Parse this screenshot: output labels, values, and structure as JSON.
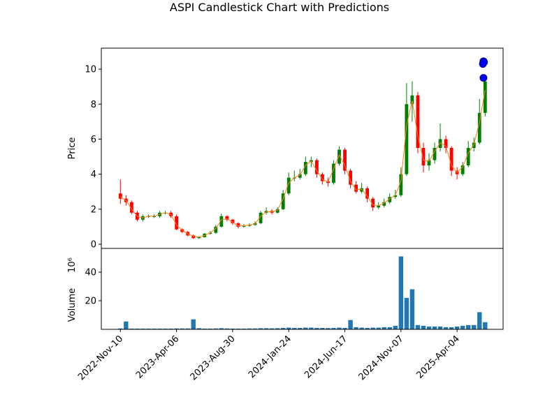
{
  "chart_data": [
    {
      "type": "candlestick",
      "title": "ASPI Candlestick Chart with Predictions",
      "y_label": "Price",
      "x": [
        0,
        10,
        20,
        30,
        40,
        50,
        60,
        70,
        80,
        90,
        100,
        110,
        120,
        130,
        140,
        150,
        160,
        170,
        180,
        190,
        200,
        210,
        220,
        230,
        240,
        250,
        260,
        270,
        280,
        290,
        300,
        310,
        320,
        330,
        340,
        350,
        360,
        370,
        380,
        390,
        400,
        410,
        420,
        430,
        440,
        450,
        460,
        470,
        480,
        490,
        500,
        510,
        520,
        530,
        540,
        550,
        560,
        570,
        580,
        590,
        600,
        610,
        620,
        630,
        640,
        650
      ],
      "open": [
        2.9,
        2.6,
        2.4,
        1.8,
        1.4,
        1.6,
        1.6,
        1.6,
        1.8,
        1.8,
        1.6,
        0.85,
        0.7,
        0.5,
        0.35,
        0.4,
        0.6,
        0.65,
        1.0,
        1.6,
        1.4,
        1.2,
        1.0,
        1.05,
        1.1,
        1.2,
        1.8,
        1.9,
        1.8,
        2.0,
        2.9,
        3.8,
        3.8,
        4.0,
        4.7,
        4.8,
        4.0,
        3.6,
        3.5,
        4.6,
        5.4,
        4.2,
        3.4,
        3.0,
        3.2,
        2.6,
        2.1,
        2.2,
        2.4,
        2.7,
        2.8,
        4.0,
        8.0,
        8.5,
        5.5,
        4.5,
        4.8,
        5.5,
        6.0,
        5.5,
        4.2,
        4.0,
        4.5,
        5.5,
        5.8,
        7.5
      ],
      "high": [
        3.7,
        2.8,
        2.5,
        1.9,
        1.7,
        1.7,
        1.7,
        1.9,
        1.9,
        1.9,
        1.7,
        0.9,
        0.75,
        0.55,
        0.45,
        0.65,
        0.75,
        1.1,
        1.75,
        1.65,
        1.45,
        1.25,
        1.15,
        1.2,
        1.3,
        1.9,
        2.1,
        2.0,
        2.1,
        3.1,
        4.1,
        4.2,
        4.3,
        5.0,
        5.0,
        4.9,
        4.1,
        3.8,
        4.8,
        5.6,
        5.5,
        4.3,
        3.6,
        3.5,
        3.3,
        2.7,
        2.4,
        2.6,
        2.9,
        3.1,
        4.4,
        9.2,
        9.3,
        8.7,
        5.8,
        5.2,
        5.8,
        6.9,
        6.2,
        5.6,
        4.4,
        4.7,
        5.9,
        6.1,
        8.3,
        9.5
      ],
      "low": [
        2.3,
        2.2,
        1.7,
        1.3,
        1.3,
        1.5,
        1.5,
        1.5,
        1.7,
        1.5,
        0.8,
        0.65,
        0.45,
        0.3,
        0.3,
        0.38,
        0.55,
        0.6,
        0.95,
        1.3,
        1.1,
        0.9,
        0.95,
        1.0,
        1.05,
        1.15,
        1.7,
        1.7,
        1.75,
        1.95,
        2.8,
        3.6,
        3.7,
        3.9,
        4.4,
        3.8,
        3.4,
        3.3,
        3.4,
        4.5,
        4.0,
        3.2,
        2.9,
        2.9,
        2.4,
        1.9,
        2.0,
        2.1,
        2.3,
        2.6,
        2.7,
        3.9,
        7.0,
        5.2,
        4.1,
        4.2,
        4.6,
        5.3,
        5.2,
        3.9,
        3.7,
        3.9,
        4.4,
        5.3,
        5.7,
        7.3
      ],
      "close": [
        2.6,
        2.4,
        1.8,
        1.4,
        1.6,
        1.6,
        1.6,
        1.8,
        1.8,
        1.6,
        0.85,
        0.7,
        0.5,
        0.35,
        0.4,
        0.6,
        0.65,
        1.0,
        1.6,
        1.4,
        1.2,
        1.0,
        1.05,
        1.1,
        1.2,
        1.8,
        1.9,
        1.8,
        2.0,
        2.9,
        3.8,
        3.8,
        4.0,
        4.7,
        4.8,
        4.0,
        3.6,
        3.5,
        4.6,
        5.4,
        4.2,
        3.4,
        3.0,
        3.2,
        2.6,
        2.1,
        2.2,
        2.4,
        2.7,
        2.8,
        4.0,
        8.0,
        8.5,
        5.5,
        4.5,
        4.8,
        5.5,
        6.0,
        5.5,
        4.2,
        4.0,
        4.5,
        5.5,
        5.8,
        7.5,
        9.3
      ],
      "up_color": "#008000",
      "down_color": "#ff0000",
      "ma": {
        "color": "#ff7f0e",
        "values": [
          2.7,
          2.5,
          2.0,
          1.6,
          1.5,
          1.6,
          1.6,
          1.7,
          1.8,
          1.7,
          1.1,
          0.8,
          0.6,
          0.45,
          0.4,
          0.5,
          0.65,
          0.9,
          1.4,
          1.45,
          1.25,
          1.05,
          1.05,
          1.1,
          1.15,
          1.6,
          1.85,
          1.85,
          1.95,
          2.6,
          3.5,
          3.8,
          3.95,
          4.5,
          4.75,
          4.2,
          3.7,
          3.55,
          4.3,
          5.1,
          4.5,
          3.6,
          3.1,
          3.15,
          2.75,
          2.25,
          2.2,
          2.35,
          2.6,
          2.8,
          3.6,
          6.8,
          8.2,
          6.2,
          4.8,
          4.75,
          5.3,
          5.8,
          5.6,
          4.5,
          4.1,
          4.4,
          5.2,
          5.7,
          7.0,
          8.8
        ]
      },
      "predictions": {
        "color": "#0000ff",
        "x": [
          646,
          647,
          647,
          648
        ],
        "values": [
          10.3,
          10.45,
          9.5,
          10.4
        ]
      },
      "xlim": [
        -34,
        682
      ],
      "ylim": [
        -0.24,
        11.2
      ],
      "yticks": [
        0,
        2,
        4,
        6,
        8,
        10
      ]
    },
    {
      "type": "bar",
      "y_label": "Volume",
      "scale_label": "10⁶",
      "color": "#1f77b4",
      "x": [
        0,
        10,
        20,
        30,
        40,
        50,
        60,
        70,
        80,
        90,
        100,
        110,
        120,
        130,
        140,
        150,
        160,
        170,
        180,
        190,
        200,
        210,
        220,
        230,
        240,
        250,
        260,
        270,
        280,
        290,
        300,
        310,
        320,
        330,
        340,
        350,
        360,
        370,
        380,
        390,
        400,
        410,
        420,
        430,
        440,
        450,
        460,
        470,
        480,
        490,
        500,
        510,
        520,
        530,
        540,
        550,
        560,
        570,
        580,
        590,
        600,
        610,
        620,
        630,
        640,
        650
      ],
      "values": [
        0.6,
        5.5,
        0.5,
        0.5,
        0.5,
        0.5,
        0.5,
        0.5,
        0.5,
        0.5,
        0.6,
        0.6,
        0.6,
        7,
        0.8,
        0.5,
        0.5,
        0.6,
        0.8,
        0.6,
        0.5,
        0.5,
        0.5,
        0.6,
        0.6,
        0.8,
        0.8,
        0.7,
        0.8,
        1.0,
        1.2,
        1.0,
        1.0,
        1.2,
        1.2,
        1.0,
        1.0,
        0.9,
        1.0,
        1.2,
        1.0,
        6.5,
        1.5,
        1.2,
        1.0,
        1.2,
        1.2,
        1.5,
        1.5,
        2.5,
        51,
        22,
        28,
        3,
        2.5,
        2,
        2,
        2,
        1.5,
        1.5,
        2,
        2.5,
        3,
        3,
        12,
        5
      ],
      "xlim": [
        -34,
        682
      ],
      "ylim": [
        0,
        56.6
      ],
      "yticks": [
        20,
        40
      ],
      "xticks": [
        {
          "value": 0,
          "label": "2022-Nov-10"
        },
        {
          "value": 100,
          "label": "2023-Apr-06"
        },
        {
          "value": 200,
          "label": "2023-Aug-30"
        },
        {
          "value": 300,
          "label": "2024-Jan-24"
        },
        {
          "value": 400,
          "label": "2024-Jun-17"
        },
        {
          "value": 500,
          "label": "2024-Nov-07"
        },
        {
          "value": 600,
          "label": "2025-Apr-04"
        }
      ]
    }
  ]
}
